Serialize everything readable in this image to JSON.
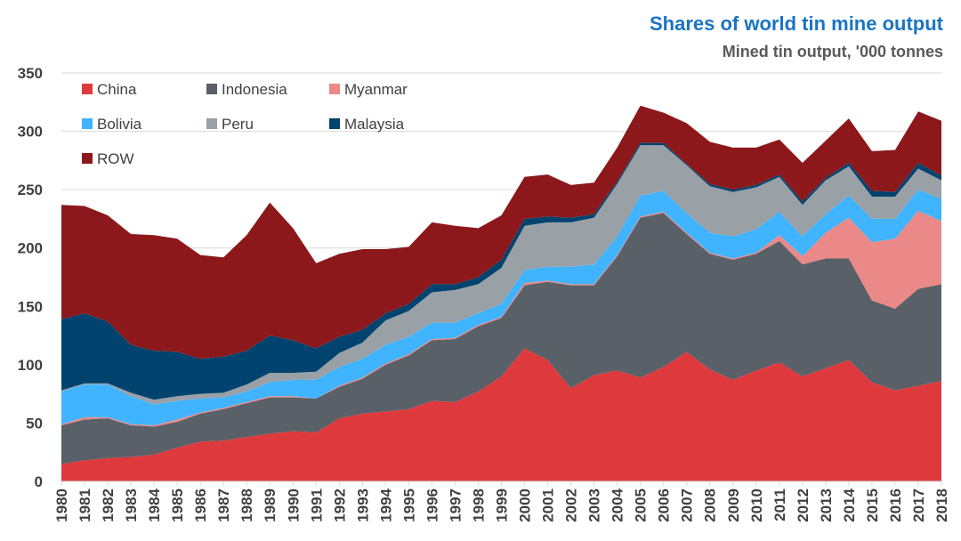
{
  "chart_data": {
    "type": "area",
    "stacked": true,
    "title": "Shares of world tin mine output",
    "subtitle": "Mined tin output, '000 tonnes",
    "xlabel": "",
    "ylabel": "",
    "ylim": [
      0,
      350
    ],
    "yticks": [
      0,
      50,
      100,
      150,
      200,
      250,
      300,
      350
    ],
    "grid": true,
    "legend_position": "top-left",
    "x": [
      1980,
      1981,
      1982,
      1983,
      1984,
      1985,
      1986,
      1987,
      1988,
      1989,
      1990,
      1991,
      1992,
      1993,
      1994,
      1995,
      1996,
      1997,
      1998,
      1999,
      2000,
      2001,
      2002,
      2003,
      2004,
      2005,
      2006,
      2007,
      2008,
      2009,
      2010,
      2011,
      2012,
      2013,
      2014,
      2015,
      2016,
      2017,
      2018
    ],
    "series": [
      {
        "name": "China",
        "color": "#de3a3e",
        "values": [
          15,
          18,
          20,
          21,
          23,
          29,
          34,
          35,
          38,
          41,
          43,
          42,
          54,
          58,
          60,
          62,
          69,
          68,
          77,
          90,
          114,
          104,
          80,
          91,
          95,
          89,
          98,
          111,
          96,
          87,
          95,
          102,
          90,
          97,
          104,
          85,
          78,
          82,
          86
        ]
      },
      {
        "name": "Indonesia",
        "color": "#596068",
        "values": [
          33,
          35,
          34,
          27,
          24,
          22,
          24,
          27,
          29,
          31,
          29,
          29,
          27,
          30,
          40,
          46,
          52,
          54,
          56,
          50,
          54,
          67,
          88,
          77,
          98,
          137,
          132,
          101,
          99,
          103,
          100,
          104,
          96,
          94,
          87,
          70,
          70,
          83,
          83
        ]
      },
      {
        "name": "Myanmar",
        "color": "#eb8888",
        "values": [
          1,
          2,
          1,
          1,
          1,
          2,
          1,
          1,
          1,
          1,
          1,
          0,
          1,
          1,
          1,
          1,
          1,
          1,
          1,
          1,
          2,
          1,
          1,
          1,
          1,
          1,
          1,
          1,
          1,
          1,
          1,
          5,
          7,
          22,
          35,
          50,
          60,
          67,
          54
        ]
      },
      {
        "name": "Bolivia",
        "color": "#40b4ff",
        "values": [
          28,
          28,
          28,
          24,
          18,
          16,
          12,
          9,
          9,
          12,
          14,
          16,
          16,
          16,
          16,
          15,
          14,
          13,
          10,
          11,
          11,
          12,
          15,
          17,
          16,
          18,
          18,
          17,
          17,
          19,
          20,
          20,
          17,
          16,
          19,
          20,
          17,
          18,
          19
        ]
      },
      {
        "name": "Peru",
        "color": "#99a0a6",
        "values": [
          1,
          1,
          1,
          3,
          4,
          4,
          4,
          4,
          6,
          8,
          6,
          7,
          12,
          14,
          21,
          22,
          26,
          28,
          25,
          31,
          38,
          38,
          38,
          40,
          45,
          43,
          39,
          41,
          40,
          38,
          36,
          30,
          27,
          29,
          25,
          19,
          19,
          18,
          16
        ]
      },
      {
        "name": "Malaysia",
        "color": "#00436e",
        "values": [
          61,
          60,
          53,
          41,
          42,
          38,
          30,
          31,
          29,
          32,
          28,
          20,
          14,
          11,
          6,
          6,
          7,
          5,
          6,
          7,
          6,
          5,
          4,
          3,
          2,
          2,
          2,
          1,
          2,
          2,
          2,
          2,
          3,
          2,
          3,
          5,
          4,
          5,
          4
        ]
      },
      {
        "name": "ROW",
        "color": "#8c181b",
        "values": [
          98,
          92,
          91,
          95,
          99,
          97,
          89,
          85,
          99,
          114,
          96,
          73,
          71,
          69,
          55,
          49,
          53,
          50,
          42,
          38,
          36,
          36,
          28,
          27,
          29,
          32,
          26,
          35,
          36,
          36,
          32,
          30,
          33,
          32,
          38,
          34,
          36,
          44,
          47
        ]
      }
    ]
  }
}
